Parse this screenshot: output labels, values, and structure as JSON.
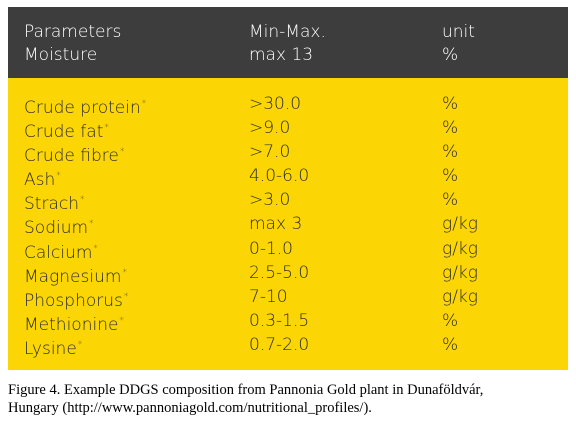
{
  "header": {
    "row1": {
      "col1": "Parameters",
      "col2": "Min-Max.",
      "col3": "unit"
    },
    "row2": {
      "col1": "Moisture",
      "col2": "max 13",
      "col3": "%"
    }
  },
  "rows": [
    {
      "param": "Crude protein",
      "mark": "*",
      "value": ">30.0",
      "unit": "%"
    },
    {
      "param": "Crude fat",
      "mark": "*",
      "value": ">9.0",
      "unit": "%"
    },
    {
      "param": "Crude fibre",
      "mark": "*",
      "value": ">7.0",
      "unit": "%"
    },
    {
      "param": "Ash",
      "mark": "*",
      "value": "4.0-6.0",
      "unit": "%"
    },
    {
      "param": "Strach",
      "mark": "*",
      "value": ">3.0",
      "unit": "%"
    },
    {
      "param": "Sodium",
      "mark": "*",
      "value": "max 3",
      "unit": "g/kg"
    },
    {
      "param": "Calcium",
      "mark": "*",
      "value": "0-1.0",
      "unit": "g/kg"
    },
    {
      "param": "Magnesium",
      "mark": "*",
      "value": "2.5-5.0",
      "unit": "g/kg"
    },
    {
      "param": "Phosphorus",
      "mark": "*",
      "value": "7-10",
      "unit": "g/kg"
    },
    {
      "param": "Methionine",
      "mark": "*",
      "value": "0.3-1.5",
      "unit": "%"
    },
    {
      "param": "Lysine",
      "mark": "*",
      "value": "0.7-2.0",
      "unit": "%"
    }
  ],
  "caption": {
    "line1": "Figure 4.  Example DDGS composition from Pannonia Gold plant in Dunaföldvár,",
    "line2": "Hungary (http://www.pannoniagold.com/nutritional_profiles/)."
  }
}
